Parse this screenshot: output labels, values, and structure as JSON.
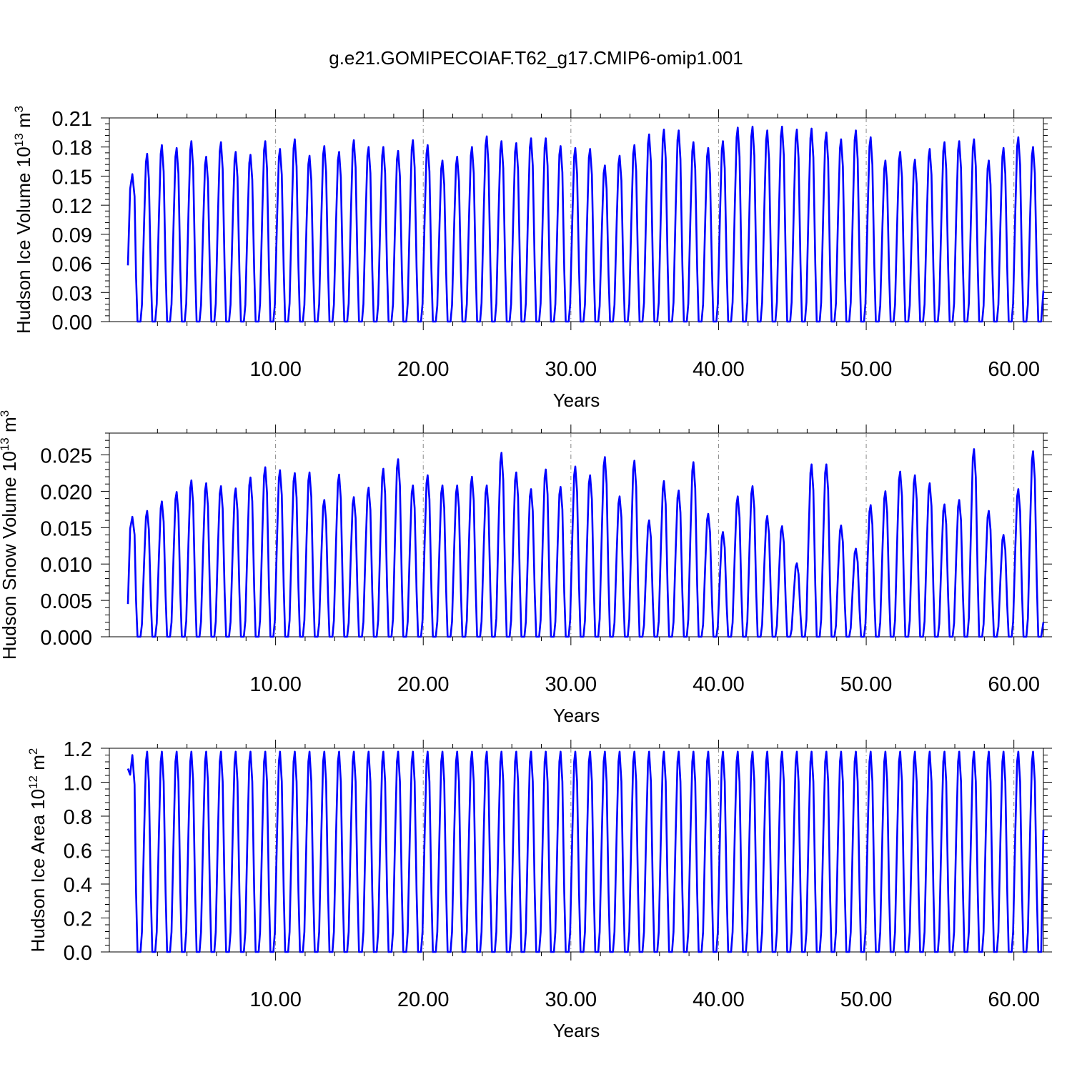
{
  "title": "g.e21.GOMIPECOIAF.T62_g17.CMIP6-omip1.001",
  "colors": {
    "series": "#0000ff",
    "axis": "#000000",
    "refline": "#888888"
  },
  "chart_data": [
    {
      "type": "line",
      "title": "",
      "xlabel": "Years",
      "ylabel": {
        "prefix": "Hudson Ice Volume 10",
        "exp": "13",
        "unit": " m",
        "unit_exp": "3"
      },
      "xlim": [
        0,
        62
      ],
      "ylim": [
        0,
        0.21
      ],
      "yticks": [
        0.0,
        0.03,
        0.06,
        0.09,
        0.12,
        0.15,
        0.18,
        0.21
      ],
      "ytick_labels": [
        "0.00",
        "0.03",
        "0.06",
        "0.09",
        "0.12",
        "0.15",
        "0.18",
        "0.21"
      ],
      "xticks": [
        10,
        20,
        30,
        40,
        50,
        60
      ],
      "xtick_labels": [
        "10.00",
        "20.00",
        "30.00",
        "40.00",
        "50.00",
        "60.00"
      ],
      "reference_lines_x": [
        10,
        20,
        30,
        40,
        50,
        60
      ],
      "series": [
        {
          "peaks": [
            0.152,
            0.173,
            0.182,
            0.179,
            0.186,
            0.17,
            0.185,
            0.175,
            0.172,
            0.186,
            0.178,
            0.188,
            0.171,
            0.181,
            0.175,
            0.187,
            0.18,
            0.18,
            0.176,
            0.187,
            0.182,
            0.166,
            0.17,
            0.18,
            0.191,
            0.186,
            0.184,
            0.189,
            0.189,
            0.181,
            0.179,
            0.178,
            0.161,
            0.171,
            0.182,
            0.193,
            0.198,
            0.197,
            0.185,
            0.179,
            0.186,
            0.2,
            0.201,
            0.197,
            0.201,
            0.198,
            0.199,
            0.195,
            0.188,
            0.197,
            0.19,
            0.166,
            0.175,
            0.167,
            0.178,
            0.185,
            0.186,
            0.188,
            0.166,
            0.179,
            0.19,
            0.18
          ],
          "start_value": 0.058,
          "end_value": 0.032
        }
      ]
    },
    {
      "type": "line",
      "title": "",
      "xlabel": "Years",
      "ylabel": {
        "prefix": "Hudson Snow Volume 10",
        "exp": "13",
        "unit": " m",
        "unit_exp": "3"
      },
      "xlim": [
        0,
        62
      ],
      "ylim": [
        0,
        0.028
      ],
      "yticks": [
        0.0,
        0.005,
        0.01,
        0.015,
        0.02,
        0.025
      ],
      "ytick_labels": [
        "0.000",
        "0.005",
        "0.010",
        "0.015",
        "0.020",
        "0.025"
      ],
      "xticks": [
        10,
        20,
        30,
        40,
        50,
        60
      ],
      "xtick_labels": [
        "10.00",
        "20.00",
        "30.00",
        "40.00",
        "50.00",
        "60.00"
      ],
      "reference_lines_x": [
        10,
        20,
        30,
        40,
        50,
        60
      ],
      "series": [
        {
          "peaks": [
            0.0165,
            0.0173,
            0.0186,
            0.0199,
            0.0215,
            0.0211,
            0.0207,
            0.0204,
            0.0219,
            0.0233,
            0.0229,
            0.0225,
            0.0226,
            0.0188,
            0.0223,
            0.0192,
            0.0205,
            0.0231,
            0.0244,
            0.0208,
            0.0222,
            0.0208,
            0.0208,
            0.022,
            0.0208,
            0.0253,
            0.0226,
            0.0203,
            0.023,
            0.0206,
            0.0234,
            0.0222,
            0.0247,
            0.0193,
            0.0242,
            0.016,
            0.0214,
            0.0201,
            0.024,
            0.0169,
            0.0144,
            0.0193,
            0.0207,
            0.0166,
            0.0152,
            0.0101,
            0.0237,
            0.0237,
            0.0153,
            0.0121,
            0.0181,
            0.02,
            0.0227,
            0.0222,
            0.0211,
            0.0182,
            0.0188,
            0.0258,
            0.0173,
            0.014,
            0.0203,
            0.0255
          ],
          "start_value": 0.0045,
          "end_value": 0.002
        }
      ]
    },
    {
      "type": "line",
      "title": "",
      "xlabel": "Years",
      "ylabel": {
        "prefix": "Hudson Ice Area 10",
        "exp": "12",
        "unit": " m",
        "unit_exp": "2"
      },
      "xlim": [
        0,
        62
      ],
      "ylim": [
        0,
        1.2
      ],
      "yticks": [
        0.0,
        0.2,
        0.4,
        0.6,
        0.8,
        1.0,
        1.2
      ],
      "ytick_labels": [
        "0.0",
        "0.2",
        "0.4",
        "0.6",
        "0.8",
        "1.0",
        "1.2"
      ],
      "xticks": [
        10,
        20,
        30,
        40,
        50,
        60
      ],
      "xtick_labels": [
        "10.00",
        "20.00",
        "30.00",
        "40.00",
        "50.00",
        "60.00"
      ],
      "reference_lines_x": [
        10,
        20,
        30,
        40,
        50,
        60
      ],
      "series": [
        {
          "peaks": [
            1.16,
            1.18,
            1.18,
            1.18,
            1.18,
            1.18,
            1.18,
            1.18,
            1.18,
            1.18,
            1.18,
            1.18,
            1.18,
            1.18,
            1.18,
            1.18,
            1.18,
            1.18,
            1.18,
            1.18,
            1.18,
            1.18,
            1.18,
            1.18,
            1.18,
            1.18,
            1.18,
            1.18,
            1.18,
            1.18,
            1.18,
            1.18,
            1.18,
            1.18,
            1.18,
            1.18,
            1.18,
            1.18,
            1.18,
            1.18,
            1.18,
            1.18,
            1.18,
            1.18,
            1.18,
            1.18,
            1.18,
            1.18,
            1.18,
            1.18,
            1.18,
            1.18,
            1.18,
            1.18,
            1.18,
            1.18,
            1.18,
            1.18,
            1.18,
            1.18,
            1.18,
            1.18
          ],
          "start_value": 1.08,
          "end_value": 0.72
        }
      ]
    }
  ]
}
